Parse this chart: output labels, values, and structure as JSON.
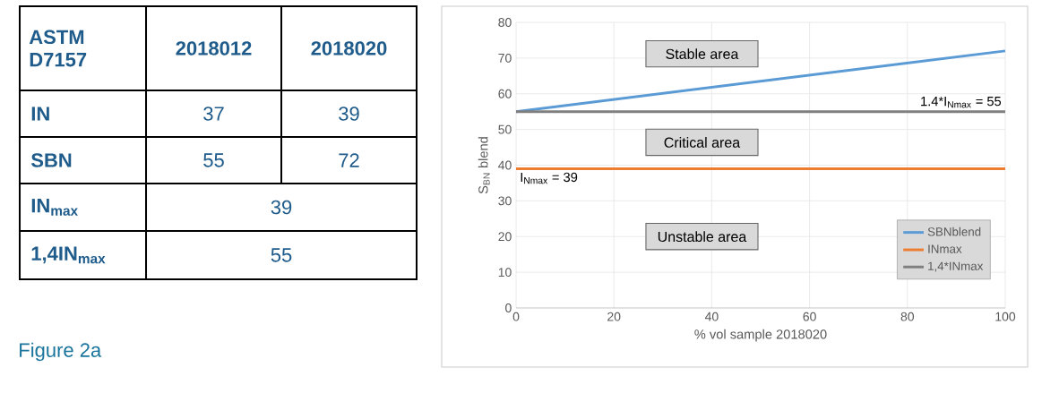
{
  "chart_data": [
    {
      "type": "other",
      "categories": [
        "ASTM D7157",
        "2018012",
        "2018020"
      ],
      "y_categories": [
        "IN",
        "SBN",
        "IN$_{max}$",
        "1,4IN$_{max}$"
      ],
      "cell_labels": [
        [
          "37",
          "39"
        ],
        [
          "55",
          "72"
        ],
        [
          "39",
          null
        ],
        [
          "55",
          null
        ]
      ],
      "annotations": [
        "Figure 2a"
      ]
    },
    {
      "type": "line",
      "xlabel": "% vol sample 2018020",
      "ylabel": "S$_{BN}$ blend",
      "xlim": [
        0,
        100
      ],
      "xticks": [
        0,
        20,
        40,
        60,
        80,
        100
      ],
      "ylim": [
        0,
        80
      ],
      "yticks": [
        0,
        10,
        20,
        30,
        40,
        50,
        60,
        70,
        80
      ],
      "grid": true,
      "legend": "bottom right",
      "series": [
        {
          "name": "SBNblend",
          "color": "#5b9bd5",
          "values": [
            55,
            72
          ]
        },
        {
          "name": "INmax",
          "color": "#ed7d31",
          "values": [
            39,
            39
          ]
        },
        {
          "name": "1,4*INmax",
          "color": "#7f7f7f",
          "values": [
            55,
            55
          ]
        }
      ],
      "x": [
        0,
        100
      ],
      "annotations": [
        "Stable area",
        "Critical area",
        "Unstable area",
        {
          "text": "1.4*I$_{Nmax}$ = 55",
          "x": 100,
          "y": 55
        },
        {
          "text": "I$_{Nmax}$ = 39",
          "x": 0,
          "y": 39
        }
      ]
    }
  ]
}
